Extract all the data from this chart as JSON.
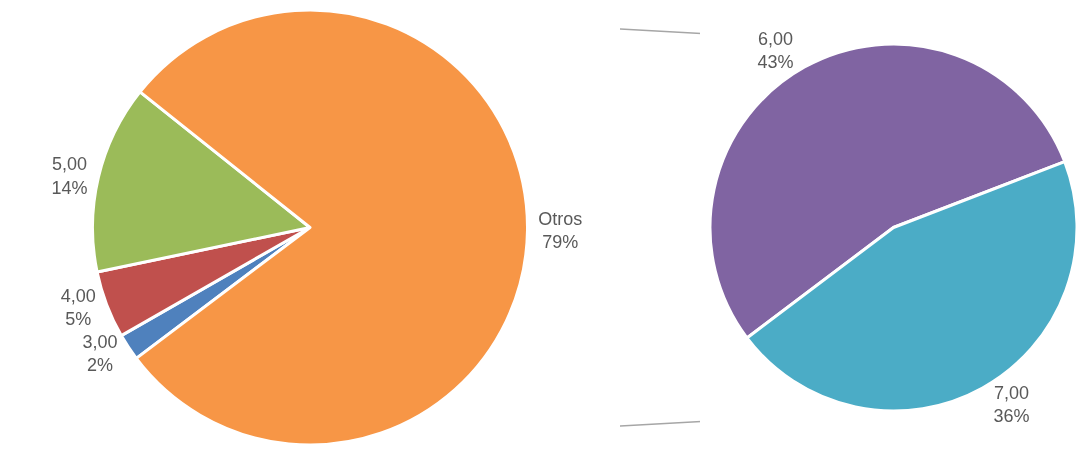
{
  "chart_data": [
    {
      "type": "pie",
      "categories": [
        "3,00",
        "4,00",
        "5,00",
        "Otros"
      ],
      "values": [
        2,
        5,
        14,
        79
      ],
      "value_labels": [
        "2%",
        "5%",
        "14%",
        "79%"
      ],
      "colors": [
        "#4f81bd",
        "#c0504d",
        "#9bbb59",
        "#f79646"
      ]
    },
    {
      "type": "pie",
      "categories": [
        "6,00",
        "7,00"
      ],
      "values": [
        43,
        36
      ],
      "value_labels": [
        "43%",
        "36%"
      ],
      "colors": [
        "#8064a2",
        "#4bacc6"
      ]
    }
  ]
}
